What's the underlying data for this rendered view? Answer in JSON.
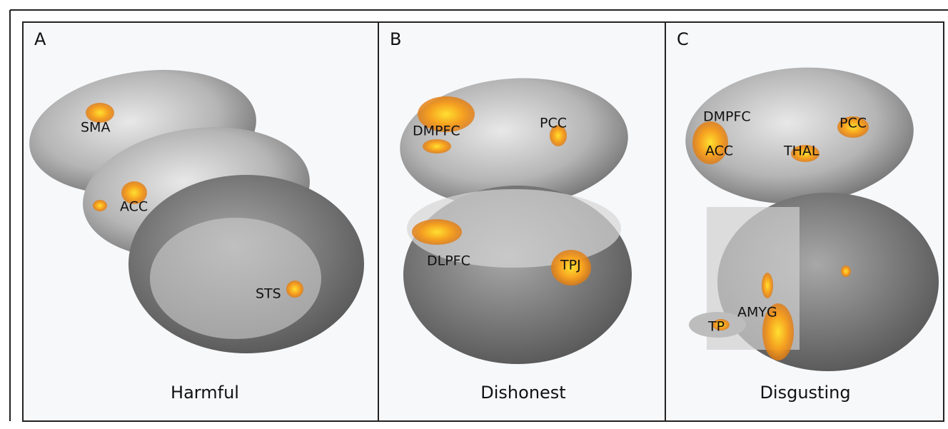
{
  "panels": [
    {
      "letter": "A",
      "caption": "Harmful",
      "regions": [
        "SMA",
        "ACC",
        "STS"
      ]
    },
    {
      "letter": "B",
      "caption": "Dishonest",
      "regions": [
        "DMPFC",
        "PCC",
        "DLPFC",
        "TPJ"
      ]
    },
    {
      "letter": "C",
      "caption": "Disgusting",
      "regions": [
        "DMPFC",
        "ACC",
        "THAL",
        "PCC",
        "TP",
        "AMYG"
      ]
    }
  ]
}
